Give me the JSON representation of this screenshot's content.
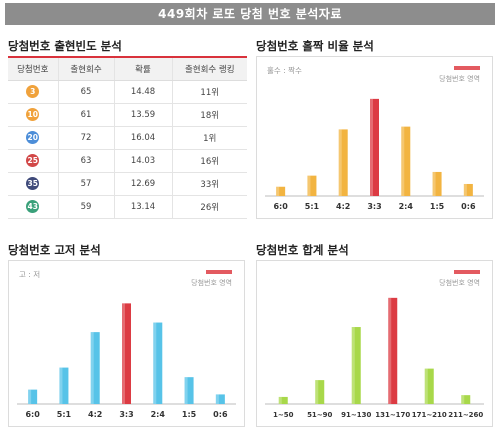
{
  "page_title": "449회차 로또 당첨 번호 분석자료",
  "frequency": {
    "title": "당첨번호 출현빈도 분석",
    "headers": [
      "당첨번호",
      "출현회수",
      "확률",
      "출현회수 랭킹"
    ],
    "rows": [
      {
        "number": "3",
        "color": "#f0a23c",
        "count": "65",
        "prob": "14.48",
        "rank": "11위"
      },
      {
        "number": "10",
        "color": "#f0a23c",
        "count": "61",
        "prob": "13.59",
        "rank": "18위"
      },
      {
        "number": "20",
        "color": "#4d8ed8",
        "count": "72",
        "prob": "16.04",
        "rank": "1위"
      },
      {
        "number": "25",
        "color": "#d24848",
        "count": "63",
        "prob": "14.03",
        "rank": "16위"
      },
      {
        "number": "35",
        "color": "#3f4a7a",
        "count": "57",
        "prob": "12.69",
        "rank": "33위"
      },
      {
        "number": "43",
        "color": "#3aa07a",
        "count": "59",
        "prob": "13.14",
        "rank": "26위"
      }
    ]
  },
  "chart_data": [
    {
      "id": "odd_even",
      "type": "bar",
      "title": "당첨번호 홀짝 비율 분석",
      "axis_note": "홀수 : 짝수",
      "legend": "당첨번호 영역",
      "categories": [
        "6:0",
        "5:1",
        "4:2",
        "3:3",
        "2:4",
        "1:5",
        "0:6"
      ],
      "values": [
        1,
        2.2,
        7.2,
        10.5,
        7.5,
        2.6,
        1.3
      ],
      "highlight_index": 3,
      "bar_color": "#f2b441",
      "highlight_color": "#dc3b43",
      "ylim": [
        0,
        12
      ]
    },
    {
      "id": "high_low",
      "type": "bar",
      "title": "당첨번호 고저 분석",
      "axis_note": "고 : 저",
      "legend": "당첨번호 영역",
      "categories": [
        "6:0",
        "5:1",
        "4:2",
        "3:3",
        "2:4",
        "1:5",
        "0:6"
      ],
      "values": [
        1.5,
        3.8,
        7.5,
        10.5,
        8.5,
        2.8,
        1
      ],
      "highlight_index": 3,
      "bar_color": "#57c3e8",
      "highlight_color": "#dc3b43",
      "ylim": [
        0,
        12
      ]
    },
    {
      "id": "sum",
      "type": "bar",
      "title": "당첨번호 합계 분석",
      "axis_note": "",
      "legend": "당첨번호 영역",
      "categories": [
        "1~50",
        "51~90",
        "91~130",
        "131~170",
        "171~210",
        "211~260"
      ],
      "values": [
        0.8,
        2.7,
        8.7,
        12,
        4,
        1
      ],
      "highlight_index": 3,
      "bar_color": "#a8d84a",
      "highlight_color": "#dc3b43",
      "ylim": [
        0,
        13
      ]
    }
  ]
}
